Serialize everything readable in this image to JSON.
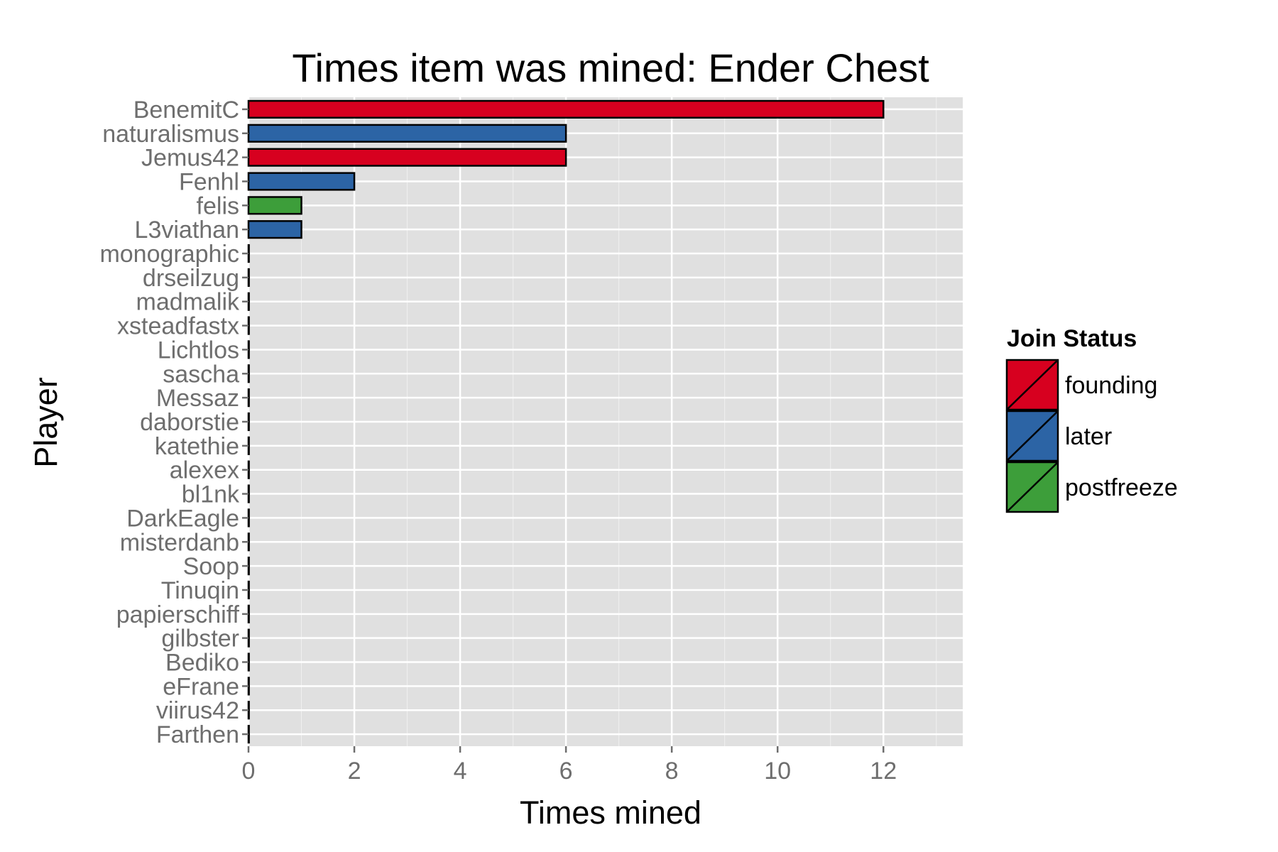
{
  "chart_data": {
    "type": "bar",
    "orientation": "horizontal",
    "title": "Times item was mined: Ender Chest",
    "xlabel": "Times mined",
    "ylabel": "Player",
    "xlim": [
      0,
      13.5
    ],
    "xticks": [
      0,
      2,
      4,
      6,
      8,
      10,
      12
    ],
    "grid": true,
    "legend": {
      "title": "Join Status",
      "placement": "right",
      "items": [
        {
          "label": "founding",
          "color": "#d7001f"
        },
        {
          "label": "later",
          "color": "#2c64a5"
        },
        {
          "label": "postfreeze",
          "color": "#3d9e3a"
        }
      ]
    },
    "categories": [
      "BenemitC",
      "naturalismus",
      "Jemus42",
      "Fenhl",
      "felis",
      "L3viathan",
      "monographic",
      "drseilzug",
      "madmalik",
      "xsteadfastx",
      "Lichtlos",
      "sascha",
      "Messaz",
      "daborstie",
      "katethie",
      "alexex",
      "bl1nk",
      "DarkEagle",
      "misterdanb",
      "Soop",
      "Tinuqin",
      "papierschiff",
      "gilbster",
      "Bediko",
      "eFrane",
      "viirus42",
      "Farthen"
    ],
    "values": [
      12,
      6,
      6,
      2,
      1,
      1,
      0,
      0,
      0,
      0,
      0,
      0,
      0,
      0,
      0,
      0,
      0,
      0,
      0,
      0,
      0,
      0,
      0,
      0,
      0,
      0,
      0
    ],
    "groups": [
      "founding",
      "later",
      "founding",
      "later",
      "postfreeze",
      "later",
      "later",
      "later",
      "later",
      "later",
      "later",
      "later",
      "later",
      "later",
      "later",
      "later",
      "later",
      "later",
      "later",
      "later",
      "later",
      "later",
      "later",
      "later",
      "later",
      "later",
      "later"
    ]
  }
}
